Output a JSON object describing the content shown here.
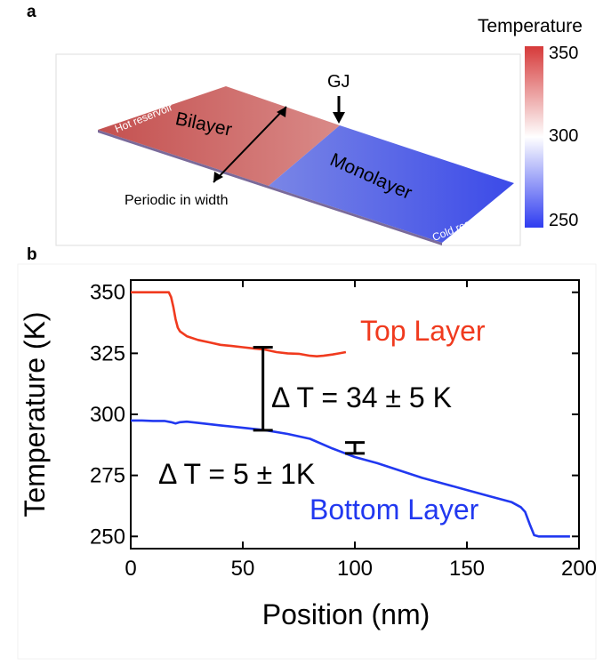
{
  "panel_a": {
    "label": "a",
    "colorbar": {
      "title": "Temperature",
      "ticks": [
        "350",
        "300",
        "250"
      ],
      "color_hot": "#d63a3a",
      "color_mid": "#ffffff",
      "color_cold": "#2f3cf0"
    },
    "labels": {
      "gj": "GJ",
      "bilayer": "Bilayer",
      "monolayer": "Monolayer",
      "periodic": "Periodic in width",
      "hot": "Hot reservoir",
      "cold": "Cold reservoir"
    }
  },
  "panel_b": {
    "label": "b"
  },
  "chart_data": {
    "type": "line",
    "xlabel": "Position (nm)",
    "ylabel": "Temperature (K)",
    "xlim": [
      0,
      200
    ],
    "ylim": [
      245,
      355
    ],
    "xticks": [
      0,
      50,
      100,
      150,
      200
    ],
    "yticks": [
      250,
      275,
      300,
      325,
      350
    ],
    "series": [
      {
        "name": "Top Layer",
        "color": "#f03a1e",
        "x": [
          0,
          17,
          18,
          19,
          20,
          21,
          22,
          25,
          30,
          35,
          40,
          45,
          50,
          55,
          60,
          65,
          70,
          75,
          80,
          83,
          86,
          90,
          93,
          96
        ],
        "y": [
          350,
          350,
          348,
          344,
          339,
          335.5,
          334,
          332,
          330.5,
          329.5,
          328.5,
          328,
          327.5,
          327,
          326.5,
          325.5,
          325,
          324.8,
          324,
          323.8,
          324,
          324.5,
          325,
          325.5
        ]
      },
      {
        "name": "Bottom Layer",
        "color": "#2138f0",
        "x": [
          0,
          5,
          10,
          15,
          18,
          20,
          22,
          25,
          30,
          40,
          50,
          60,
          70,
          80,
          90,
          100,
          110,
          120,
          130,
          140,
          150,
          160,
          170,
          174,
          176,
          178,
          180,
          182,
          190,
          196
        ],
        "y": [
          297.5,
          297.5,
          297.3,
          297.3,
          296.8,
          296.3,
          296.8,
          297,
          296.5,
          295.5,
          294.5,
          293.5,
          292,
          290,
          286,
          282.5,
          280,
          277,
          274,
          271.5,
          269,
          266.5,
          264,
          262,
          260,
          255,
          250.5,
          250,
          250,
          250
        ]
      }
    ],
    "annotations": [
      {
        "text": "Top Layer",
        "color": "#f03a1e"
      },
      {
        "text": "Bottom Layer",
        "color": "#2138f0"
      },
      {
        "text": "Δ T = 34 ± 5 K",
        "color": "#000000"
      },
      {
        "text": "Δ T = 5 ± 1K",
        "color": "#000000"
      }
    ],
    "errorbars": [
      {
        "x": 59,
        "ylow": 293.5,
        "yhigh": 327.5
      },
      {
        "x": 100,
        "ylow": 284,
        "yhigh": 288.5
      }
    ]
  }
}
